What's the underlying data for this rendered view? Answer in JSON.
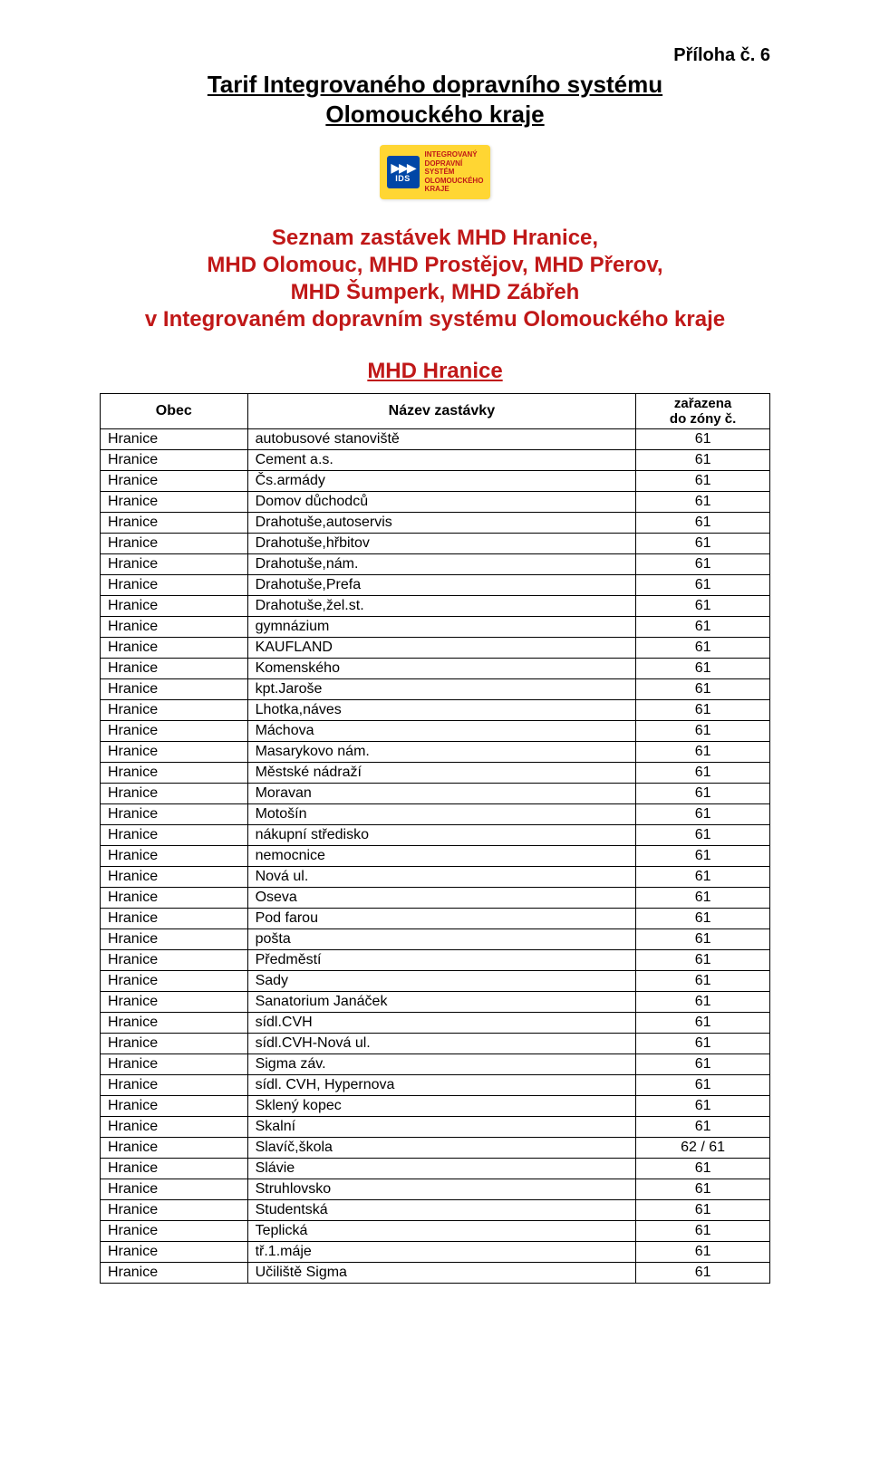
{
  "appendix": "Příloha č. 6",
  "title_line1": "Tarif Integrovaného dopravního systému",
  "title_line2": "Olomouckého kraje",
  "logo": {
    "ids": "IDS",
    "text_line1": "INTEGROVANÝ",
    "text_line2": "DOPRAVNÍ",
    "text_line3": "SYSTÉM",
    "text_line4": "OLOMOUCKÉHO",
    "text_line5": "KRAJE"
  },
  "subtitle_line1": "Seznam zastávek MHD Hranice,",
  "subtitle_line2": "MHD Olomouc, MHD Prostějov, MHD Přerov,",
  "subtitle_line3": "MHD Šumperk, MHD Zábřeh",
  "subtitle_line4": "v Integrovaném dopravním systému Olomouckého kraje",
  "section_heading": "MHD Hranice",
  "table": {
    "headers": {
      "obec": "Obec",
      "nazev": "Název zastávky",
      "zona_line1": "zařazena",
      "zona_line2": "do zóny č."
    },
    "rows": [
      {
        "obec": "Hranice",
        "nazev": "autobusové stanoviště",
        "zone": "61"
      },
      {
        "obec": "Hranice",
        "nazev": "Cement a.s.",
        "zone": "61"
      },
      {
        "obec": "Hranice",
        "nazev": "Čs.armády",
        "zone": "61"
      },
      {
        "obec": "Hranice",
        "nazev": "Domov důchodců",
        "zone": "61"
      },
      {
        "obec": "Hranice",
        "nazev": "Drahotuše,autoservis",
        "zone": "61"
      },
      {
        "obec": "Hranice",
        "nazev": "Drahotuše,hřbitov",
        "zone": "61"
      },
      {
        "obec": "Hranice",
        "nazev": "Drahotuše,nám.",
        "zone": "61"
      },
      {
        "obec": "Hranice",
        "nazev": "Drahotuše,Prefa",
        "zone": "61"
      },
      {
        "obec": "Hranice",
        "nazev": "Drahotuše,žel.st.",
        "zone": "61"
      },
      {
        "obec": "Hranice",
        "nazev": "gymnázium",
        "zone": "61"
      },
      {
        "obec": "Hranice",
        "nazev": "KAUFLAND",
        "zone": "61"
      },
      {
        "obec": "Hranice",
        "nazev": "Komenského",
        "zone": "61"
      },
      {
        "obec": "Hranice",
        "nazev": "kpt.Jaroše",
        "zone": "61"
      },
      {
        "obec": "Hranice",
        "nazev": "Lhotka,náves",
        "zone": "61"
      },
      {
        "obec": "Hranice",
        "nazev": "Máchova",
        "zone": "61"
      },
      {
        "obec": "Hranice",
        "nazev": "Masarykovo nám.",
        "zone": "61"
      },
      {
        "obec": "Hranice",
        "nazev": "Městské nádraží",
        "zone": "61"
      },
      {
        "obec": "Hranice",
        "nazev": "Moravan",
        "zone": "61"
      },
      {
        "obec": "Hranice",
        "nazev": "Motošín",
        "zone": "61"
      },
      {
        "obec": "Hranice",
        "nazev": "nákupní středisko",
        "zone": "61"
      },
      {
        "obec": "Hranice",
        "nazev": "nemocnice",
        "zone": "61"
      },
      {
        "obec": "Hranice",
        "nazev": "Nová ul.",
        "zone": "61"
      },
      {
        "obec": "Hranice",
        "nazev": "Oseva",
        "zone": "61"
      },
      {
        "obec": "Hranice",
        "nazev": "Pod farou",
        "zone": "61"
      },
      {
        "obec": "Hranice",
        "nazev": "pošta",
        "zone": "61"
      },
      {
        "obec": "Hranice",
        "nazev": "Předměstí",
        "zone": "61"
      },
      {
        "obec": "Hranice",
        "nazev": "Sady",
        "zone": "61"
      },
      {
        "obec": "Hranice",
        "nazev": "Sanatorium Janáček",
        "zone": "61"
      },
      {
        "obec": "Hranice",
        "nazev": "sídl.CVH",
        "zone": "61"
      },
      {
        "obec": "Hranice",
        "nazev": "sídl.CVH-Nová ul.",
        "zone": "61"
      },
      {
        "obec": "Hranice",
        "nazev": "Sigma záv.",
        "zone": "61"
      },
      {
        "obec": "Hranice",
        "nazev": "sídl. CVH, Hypernova",
        "zone": "61"
      },
      {
        "obec": "Hranice",
        "nazev": "Sklený kopec",
        "zone": "61"
      },
      {
        "obec": "Hranice",
        "nazev": "Skalní",
        "zone": "61"
      },
      {
        "obec": "Hranice",
        "nazev": "Slavíč,škola",
        "zone": "62 / 61"
      },
      {
        "obec": "Hranice",
        "nazev": "Slávie",
        "zone": "61"
      },
      {
        "obec": "Hranice",
        "nazev": "Struhlovsko",
        "zone": "61"
      },
      {
        "obec": "Hranice",
        "nazev": "Studentská",
        "zone": "61"
      },
      {
        "obec": "Hranice",
        "nazev": "Teplická",
        "zone": "61"
      },
      {
        "obec": "Hranice",
        "nazev": "tř.1.máje",
        "zone": "61"
      },
      {
        "obec": "Hranice",
        "nazev": "Učiliště Sigma",
        "zone": "61"
      }
    ]
  },
  "colors": {
    "heading_red": "#c01818",
    "logo_yellow": "#ffd633",
    "logo_blue": "#0046a6",
    "text_black": "#000000",
    "background": "#ffffff"
  }
}
